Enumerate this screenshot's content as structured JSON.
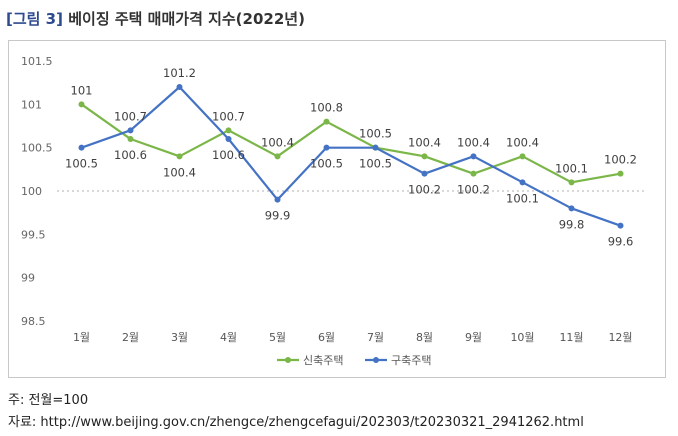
{
  "title": {
    "tag": "[그림 3]",
    "text": "베이징 주택 매매가격 지수(2022년)"
  },
  "chart_data": {
    "type": "line",
    "categories": [
      "1월",
      "2월",
      "3월",
      "4월",
      "5월",
      "6월",
      "7월",
      "8월",
      "9월",
      "10월",
      "11월",
      "12월"
    ],
    "ylim": [
      98.5,
      101.5
    ],
    "yticks": [
      "98.5",
      "99",
      "99.5",
      "100",
      "100.5",
      "101",
      "101.5"
    ],
    "reference_line": 100,
    "legend_position": "bottom",
    "series": [
      {
        "name": "신축주택",
        "color": "#7ab648",
        "values": [
          101,
          100.6,
          100.4,
          100.7,
          100.4,
          100.8,
          100.5,
          100.4,
          100.2,
          100.4,
          100.1,
          100.2
        ],
        "labels": [
          "101",
          "100.6",
          "100.4",
          "100.7",
          "100.4",
          "100.8",
          "100.5",
          "100.4",
          "100.2",
          "100.4",
          "100.1",
          "100.2"
        ]
      },
      {
        "name": "구축주택",
        "color": "#4472c4",
        "values": [
          100.5,
          100.7,
          101.2,
          100.6,
          99.9,
          100.5,
          100.5,
          100.2,
          100.4,
          100.1,
          99.8,
          99.6
        ],
        "labels": [
          "100.5",
          "100.7",
          "101.2",
          "100.6",
          "99.9",
          "100.5",
          "100.5",
          "100.2",
          "100.4",
          "100.1",
          "99.8",
          "99.6"
        ]
      }
    ]
  },
  "notes": {
    "base": "주: 전월=100",
    "source": "자료: http://www.beijing.gov.cn/zhengce/zhengcefagui/202303/t20230321_2941262.html"
  }
}
